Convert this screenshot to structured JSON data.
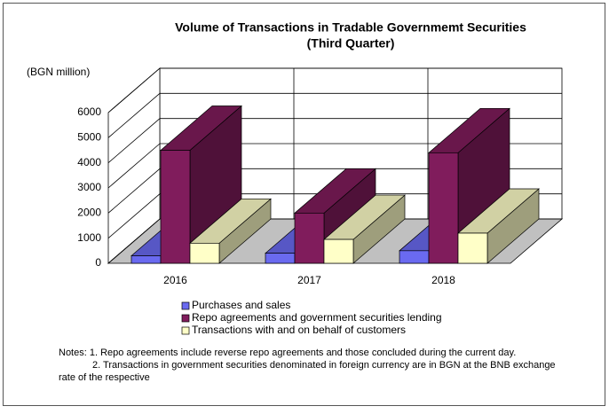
{
  "chart_data": {
    "type": "bar3d",
    "title": "Volume of Transactions in Tradable Governmemt Securities",
    "subtitle": "(Third Quarter)",
    "y_label": "(BGN million)",
    "categories": [
      "2016",
      "2017",
      "2018"
    ],
    "series": [
      {
        "name": "Purchases and sales",
        "color": "#6a6af0",
        "values": [
          300,
          400,
          500
        ]
      },
      {
        "name": "Repo agreements and government securities lending",
        "color": "#801c5c",
        "values": [
          4500,
          2000,
          4400
        ]
      },
      {
        "name": "Transactions with and on behalf of customers",
        "color": "#ffffc8",
        "values": [
          800,
          950,
          1200
        ]
      }
    ],
    "ylim": [
      0,
      6000
    ],
    "yticks": [
      0,
      1000,
      2000,
      3000,
      4000,
      5000,
      6000
    ],
    "grid": true,
    "notes": [
      "Notes: 1. Repo agreements include reverse repo agreements and those concluded during the current day.",
      "2. Transactions in government securities denominated in foreign currency are in BGN at the BNB exchange",
      "rate of the respective"
    ]
  }
}
